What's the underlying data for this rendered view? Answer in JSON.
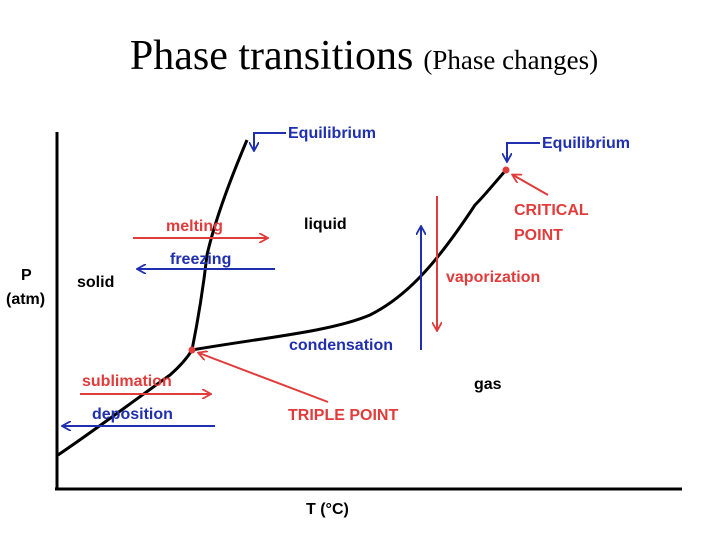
{
  "title": {
    "main": "Phase transitions",
    "sub": "(Phase changes)"
  },
  "diagram": {
    "axes": {
      "y_label_line1": "P",
      "y_label_line2": "(atm)",
      "x_label": "T (°C)"
    },
    "regions": {
      "solid": "solid",
      "liquid": "liquid",
      "gas": "gas"
    },
    "equilibrium_labels": [
      "Equilibrium",
      "Equilibrium"
    ],
    "transitions": {
      "melting": "melting",
      "freezing": "freezing",
      "vaporization": "vaporization",
      "condensation": "condensation",
      "sublimation": "sublimation",
      "deposition": "deposition"
    },
    "points": {
      "critical_line1": "CRITICAL",
      "critical_line2": "POINT",
      "triple": "TRIPLE POINT"
    },
    "colors": {
      "red": "#e23b3b",
      "blue": "#1f2fb0",
      "curve": "#000000"
    }
  }
}
